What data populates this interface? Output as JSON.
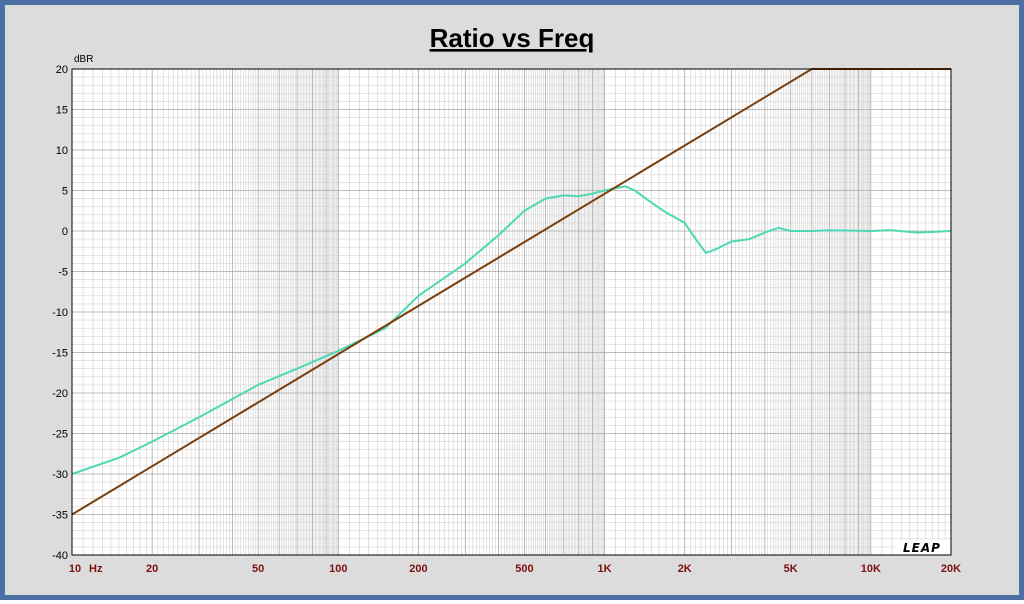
{
  "chart_data": {
    "type": "line",
    "title": "Ratio vs Freq",
    "ylabel": "dBR",
    "x_unit": "Hz",
    "x_scale": "log",
    "xlim": [
      10,
      20000
    ],
    "ylim": [
      -40,
      20
    ],
    "grid": true,
    "x_ticks": [
      {
        "value": 10,
        "label": "10"
      },
      {
        "value": 20,
        "label": "20"
      },
      {
        "value": 50,
        "label": "50"
      },
      {
        "value": 100,
        "label": "100"
      },
      {
        "value": 200,
        "label": "200"
      },
      {
        "value": 500,
        "label": "500"
      },
      {
        "value": 1000,
        "label": "1K"
      },
      {
        "value": 2000,
        "label": "2K"
      },
      {
        "value": 5000,
        "label": "5K"
      },
      {
        "value": 10000,
        "label": "10K"
      },
      {
        "value": 20000,
        "label": "20K"
      }
    ],
    "y_ticks": [
      20,
      15,
      10,
      5,
      0,
      -5,
      -10,
      -15,
      -20,
      -25,
      -30,
      -35,
      -40
    ],
    "series": [
      {
        "color": "#4dd8b4",
        "points": [
          [
            10,
            -30
          ],
          [
            15,
            -28
          ],
          [
            20,
            -26
          ],
          [
            30,
            -23
          ],
          [
            50,
            -19
          ],
          [
            70,
            -17
          ],
          [
            100,
            -14.8
          ],
          [
            150,
            -12
          ],
          [
            200,
            -8
          ],
          [
            300,
            -4
          ],
          [
            400,
            -0.5
          ],
          [
            500,
            2.5
          ],
          [
            600,
            4
          ],
          [
            700,
            4.4
          ],
          [
            800,
            4.3
          ],
          [
            900,
            4.6
          ],
          [
            1000,
            5
          ],
          [
            1100,
            5.3
          ],
          [
            1200,
            5.5
          ],
          [
            1300,
            5
          ],
          [
            1500,
            3.5
          ],
          [
            1700,
            2.3
          ],
          [
            2000,
            1
          ],
          [
            2200,
            -1
          ],
          [
            2400,
            -2.7
          ],
          [
            2600,
            -2.3
          ],
          [
            3000,
            -1.3
          ],
          [
            3500,
            -1
          ],
          [
            4000,
            -0.2
          ],
          [
            4500,
            0.4
          ],
          [
            5000,
            0
          ],
          [
            6000,
            0
          ],
          [
            7000,
            0.1
          ],
          [
            10000,
            0
          ],
          [
            12000,
            0.1
          ],
          [
            15000,
            -0.2
          ],
          [
            20000,
            0
          ]
        ]
      },
      {
        "color": "#7a3e0c",
        "points": [
          [
            10,
            -35
          ],
          [
            6000,
            20
          ],
          [
            20000,
            20
          ]
        ]
      }
    ]
  },
  "logo": "LEAP"
}
